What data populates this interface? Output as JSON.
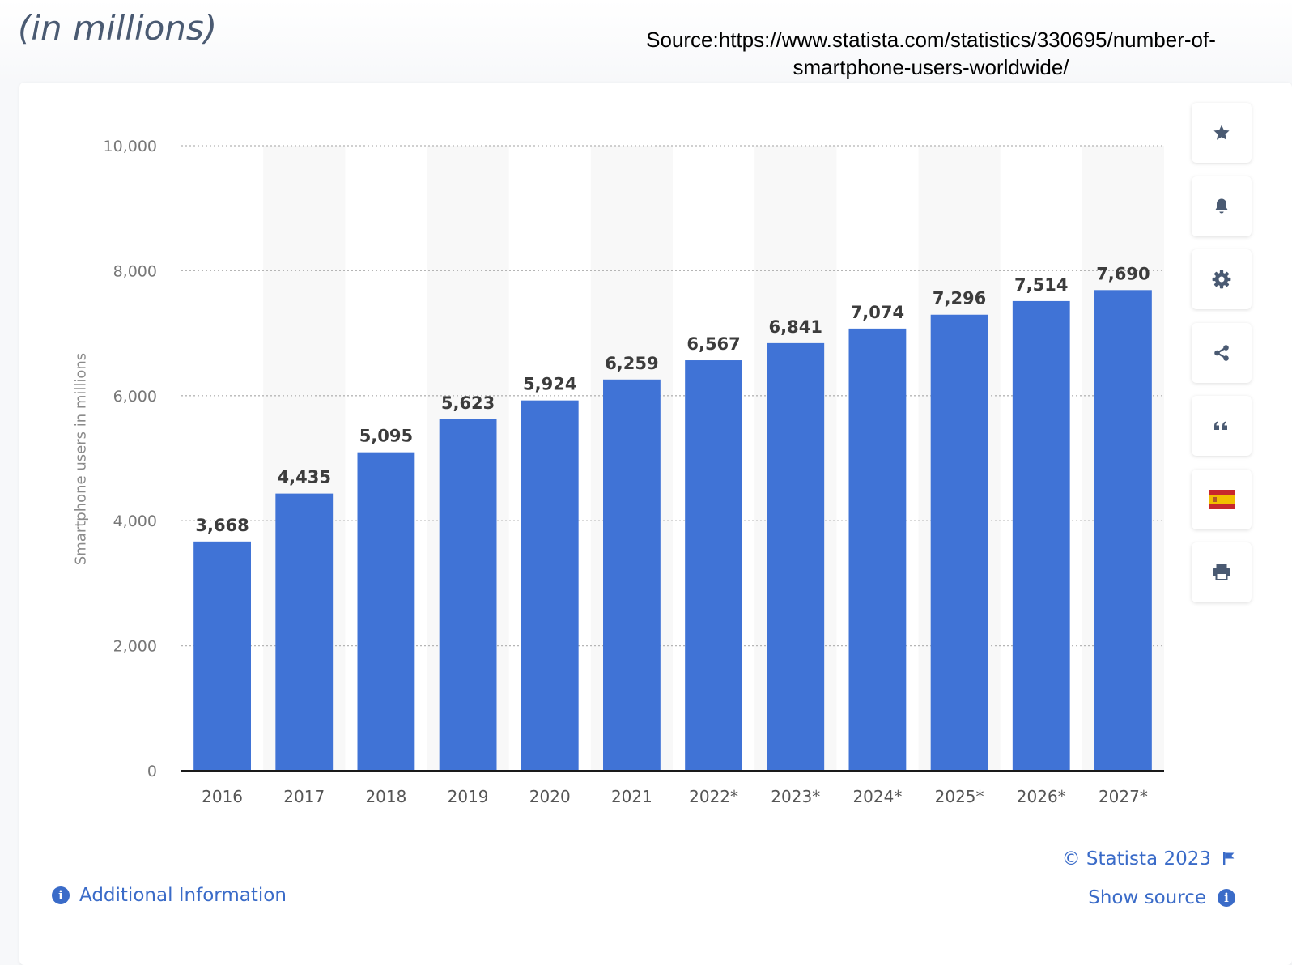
{
  "header": {
    "heading": "(in millions)",
    "source_note": "Source:https://www.statista.com/statistics/330695/number-of-smartphone-users-worldwide/"
  },
  "toolbar": {
    "buttons": [
      "star-icon",
      "bell-icon",
      "gear-icon",
      "share-icon",
      "quote-icon",
      "spain-flag-icon",
      "printer-icon"
    ]
  },
  "footer": {
    "additional_info": "Additional Information",
    "copyright": "© Statista 2023",
    "show_source": "Show source"
  },
  "colors": {
    "bar": "#4073d6",
    "link": "#3a6bc8",
    "band": "#f8f8f8"
  },
  "chart_data": {
    "type": "bar",
    "categories": [
      "2016",
      "2017",
      "2018",
      "2019",
      "2020",
      "2021",
      "2022*",
      "2023*",
      "2024*",
      "2025*",
      "2026*",
      "2027*"
    ],
    "values": [
      3668,
      4435,
      5095,
      5623,
      5924,
      6259,
      6567,
      6841,
      7074,
      7296,
      7514,
      7690
    ],
    "data_labels": [
      "3,668",
      "4,435",
      "5,095",
      "5,623",
      "5,924",
      "6,259",
      "6,567",
      "6,841",
      "7,074",
      "7,296",
      "7,514",
      "7,690"
    ],
    "ylabel": "Smartphone users in millions",
    "ylim": [
      0,
      10000
    ],
    "yticks": [
      0,
      2000,
      4000,
      6000,
      8000,
      10000
    ],
    "ytick_labels": [
      "0",
      "2,000",
      "4,000",
      "6,000",
      "8,000",
      "10,000"
    ],
    "grid": "horizontal dotted"
  }
}
